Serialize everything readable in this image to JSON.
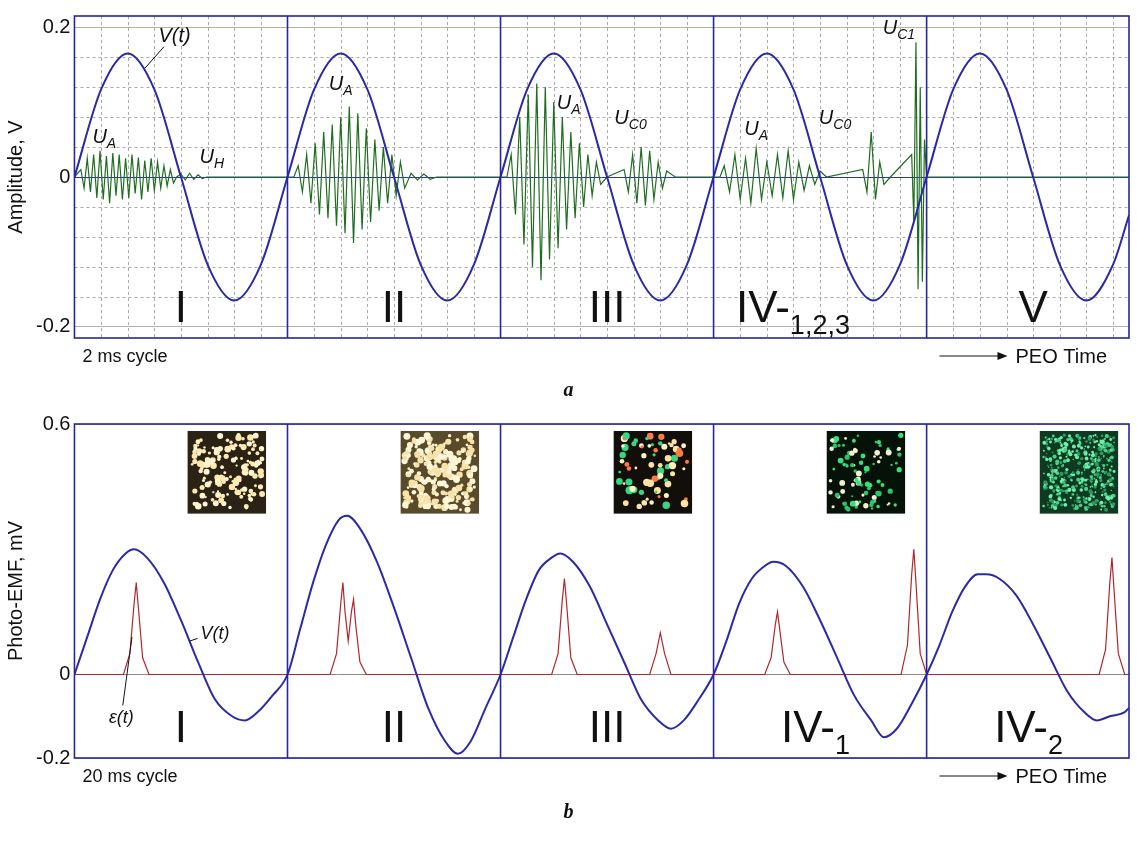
{
  "chart_data": [
    {
      "panel": "a",
      "type": "line",
      "y_label": "Amplitude, V",
      "x_note": "2 ms cycle",
      "time_label": "PEO Time",
      "xlim": [
        0,
        4.95
      ],
      "xticks": [
        0,
        1,
        2,
        3,
        4
      ],
      "ylim": [
        -0.215,
        0.215
      ],
      "yticks": [
        -0.2,
        0,
        0.2
      ],
      "grid": true,
      "tick_labels": "y",
      "sections": [
        {
          "label": "I"
        },
        {
          "label": "II"
        },
        {
          "label": "III"
        },
        {
          "label": "IV-",
          "sub": "1,2,3"
        },
        {
          "label": "V"
        }
      ],
      "series": [
        {
          "color": "#2a2aa6",
          "line_style": "smooth",
          "x": [
            0,
            0.125,
            0.25,
            0.375,
            0.5,
            0.625,
            0.75,
            0.875,
            1,
            1.125,
            1.25,
            1.375,
            1.5,
            1.625,
            1.75,
            1.875,
            2,
            2.125,
            2.25,
            2.375,
            2.5,
            2.625,
            2.75,
            2.875,
            3,
            3.125,
            3.25,
            3.375,
            3.5,
            3.625,
            3.75,
            3.875,
            4,
            4.125,
            4.25,
            4.375,
            4.5,
            4.625,
            4.75,
            4.875,
            4.95
          ],
          "values": [
            0,
            0.117,
            0.165,
            0.117,
            0,
            -0.117,
            -0.165,
            -0.117,
            0,
            0.117,
            0.165,
            0.117,
            0,
            -0.117,
            -0.165,
            -0.117,
            0,
            0.117,
            0.165,
            0.117,
            0,
            -0.117,
            -0.165,
            -0.117,
            0,
            0.117,
            0.165,
            0.117,
            0,
            -0.117,
            -0.165,
            -0.117,
            0,
            0.117,
            0.165,
            0.117,
            0,
            -0.117,
            -0.165,
            -0.117,
            -0.051
          ]
        },
        {
          "color": "#1f6e1f",
          "line_style": "solid",
          "x": [
            0,
            0.03,
            0.045,
            0.06,
            0.075,
            0.09,
            0.105,
            0.12,
            0.135,
            0.15,
            0.165,
            0.18,
            0.195,
            0.21,
            0.225,
            0.24,
            0.255,
            0.27,
            0.285,
            0.3,
            0.315,
            0.33,
            0.345,
            0.36,
            0.375,
            0.39,
            0.405,
            0.42,
            0.435,
            0.45,
            0.465,
            0.48,
            0.5,
            0.52,
            0.54,
            0.56,
            0.58,
            0.6,
            0.62,
            1.03,
            1.05,
            1.07,
            1.09,
            1.11,
            1.13,
            1.15,
            1.17,
            1.19,
            1.21,
            1.23,
            1.25,
            1.27,
            1.29,
            1.31,
            1.33,
            1.35,
            1.37,
            1.39,
            1.41,
            1.43,
            1.45,
            1.47,
            1.49,
            1.51,
            1.53,
            1.55,
            1.58,
            1.61,
            1.64,
            1.67,
            1.7,
            2.03,
            2.05,
            2.07,
            2.09,
            2.11,
            2.13,
            2.15,
            2.17,
            2.19,
            2.21,
            2.23,
            2.25,
            2.27,
            2.29,
            2.31,
            2.33,
            2.35,
            2.37,
            2.39,
            2.41,
            2.43,
            2.45,
            2.47,
            2.5,
            2.58,
            2.6,
            2.62,
            2.64,
            2.66,
            2.68,
            2.7,
            2.72,
            2.74,
            2.76,
            2.78,
            2.82,
            3.03,
            3.05,
            3.075,
            3.1,
            3.125,
            3.15,
            3.175,
            3.2,
            3.225,
            3.25,
            3.275,
            3.3,
            3.325,
            3.35,
            3.375,
            3.4,
            3.425,
            3.45,
            3.475,
            3.5,
            3.53,
            3.7,
            3.72,
            3.74,
            3.76,
            3.78,
            3.8,
            3.83,
            3.93,
            3.94,
            3.95,
            3.96,
            3.97,
            3.98,
            3.99,
            4,
            4.95
          ],
          "values": [
            0,
            0.01,
            -0.015,
            0.025,
            -0.02,
            0.03,
            -0.028,
            0.035,
            -0.03,
            0.028,
            -0.035,
            0.032,
            -0.025,
            0.03,
            -0.03,
            0.025,
            -0.028,
            0.03,
            -0.022,
            0.026,
            -0.03,
            0.022,
            -0.02,
            0.025,
            -0.018,
            0.02,
            -0.015,
            0.015,
            -0.012,
            0.01,
            -0.008,
            0,
            0.004,
            -0.004,
            0.005,
            -0.003,
            0.003,
            -0.002,
            0,
            0,
            0.015,
            -0.02,
            0.03,
            -0.035,
            0.045,
            -0.05,
            0.06,
            -0.055,
            0.07,
            -0.065,
            0.08,
            -0.075,
            0.094,
            -0.088,
            0.085,
            -0.07,
            0.065,
            -0.06,
            0.05,
            -0.045,
            0.04,
            -0.035,
            0.03,
            -0.025,
            0.02,
            -0.015,
            0.005,
            -0.004,
            0.004,
            -0.003,
            0,
            0,
            0.03,
            -0.05,
            0.08,
            -0.09,
            0.11,
            -0.12,
            0.125,
            -0.138,
            0.12,
            -0.11,
            0.1,
            -0.095,
            0.08,
            -0.07,
            0.06,
            -0.055,
            0.045,
            -0.04,
            0.03,
            -0.025,
            0.02,
            -0.01,
            0,
            0.01,
            -0.02,
            0.03,
            -0.035,
            0.04,
            -0.038,
            0.035,
            -0.03,
            0.02,
            -0.015,
            0.008,
            0,
            0,
            0.015,
            -0.02,
            0.03,
            -0.03,
            0.025,
            -0.035,
            0.038,
            -0.03,
            0.02,
            -0.025,
            0.03,
            -0.028,
            0.035,
            -0.03,
            0.02,
            -0.018,
            0.015,
            -0.01,
            0.008,
            0,
            0.01,
            -0.02,
            0.06,
            -0.03,
            0.02,
            -0.01,
            0,
            0.03,
            -0.06,
            0.18,
            -0.15,
            0.12,
            -0.14,
            0.05,
            0,
            0
          ]
        }
      ],
      "annotations": [
        {
          "text": "V(t)",
          "x": 0.47,
          "y": 0.19,
          "arrow_to": [
            0.33,
            0.145
          ]
        },
        {
          "text": "U",
          "sub": "A",
          "x": 0.14,
          "y": 0.055
        },
        {
          "text": "U",
          "sub": "H",
          "x": 0.645,
          "y": 0.028
        },
        {
          "text": "U",
          "sub": "A",
          "x": 1.25,
          "y": 0.125
        },
        {
          "text": "U",
          "sub": "A",
          "x": 2.32,
          "y": 0.1
        },
        {
          "text": "U",
          "sub": "C0",
          "x": 2.61,
          "y": 0.08
        },
        {
          "text": "U",
          "sub": "A",
          "x": 3.2,
          "y": 0.065
        },
        {
          "text": "U",
          "sub": "C0",
          "x": 3.57,
          "y": 0.08
        },
        {
          "text": "U",
          "sub": "C1",
          "x": 3.87,
          "y": 0.2
        }
      ]
    },
    {
      "panel": "b",
      "type": "line",
      "y_label": "Photo-EMF, mV",
      "x_note": "20 ms cycle",
      "time_label": "PEO Time",
      "xlim": [
        0,
        4.95
      ],
      "xticks": [
        0,
        1,
        2,
        3,
        4
      ],
      "ylim": [
        -0.2,
        0.6
      ],
      "yticks": [
        -0.2,
        0,
        0.6
      ],
      "grid": true,
      "tick_labels": "y",
      "sections": [
        {
          "label": "I"
        },
        {
          "label": "II"
        },
        {
          "label": "III"
        },
        {
          "label": "IV-",
          "sub": "1"
        },
        {
          "label": "IV-",
          "sub": "2"
        }
      ],
      "series": [
        {
          "color": "#2a2aa6",
          "line_style": "smooth",
          "x": [
            0,
            0.06,
            0.12,
            0.18,
            0.24,
            0.28,
            0.34,
            0.42,
            0.5,
            0.58,
            0.66,
            0.74,
            0.8,
            0.86,
            0.93,
            1,
            1.06,
            1.12,
            1.18,
            1.24,
            1.28,
            1.34,
            1.42,
            1.5,
            1.58,
            1.66,
            1.74,
            1.8,
            1.86,
            1.93,
            2,
            2.06,
            2.12,
            2.18,
            2.24,
            2.28,
            2.34,
            2.42,
            2.5,
            2.58,
            2.66,
            2.74,
            2.8,
            2.86,
            2.93,
            3,
            3.06,
            3.12,
            3.18,
            3.24,
            3.28,
            3.34,
            3.42,
            3.5,
            3.58,
            3.66,
            3.74,
            3.8,
            3.86,
            3.93,
            4,
            4.06,
            4.12,
            4.18,
            4.24,
            4.28,
            4.34,
            4.42,
            4.5,
            4.58,
            4.66,
            4.74,
            4.8,
            4.86,
            4.93,
            4.95
          ],
          "values": [
            0,
            0.09,
            0.18,
            0.25,
            0.29,
            0.3,
            0.28,
            0.22,
            0.13,
            0.03,
            -0.06,
            -0.1,
            -0.11,
            -0.09,
            -0.05,
            0,
            0.11,
            0.22,
            0.31,
            0.37,
            0.38,
            0.35,
            0.27,
            0.16,
            0.04,
            -0.08,
            -0.16,
            -0.19,
            -0.16,
            -0.08,
            0,
            0.09,
            0.18,
            0.25,
            0.28,
            0.29,
            0.27,
            0.21,
            0.12,
            0.03,
            -0.06,
            -0.11,
            -0.13,
            -0.11,
            -0.06,
            0,
            0.08,
            0.17,
            0.23,
            0.26,
            0.27,
            0.26,
            0.21,
            0.13,
            0.04,
            -0.05,
            -0.11,
            -0.15,
            -0.13,
            -0.07,
            0,
            0.07,
            0.15,
            0.21,
            0.24,
            0.24,
            0.23,
            0.19,
            0.12,
            0.04,
            -0.04,
            -0.09,
            -0.11,
            -0.1,
            -0.09,
            -0.08
          ]
        },
        {
          "color": "#b3262b",
          "line_style": "solid",
          "x": [
            0,
            0.23,
            0.26,
            0.28,
            0.29,
            0.3,
            0.32,
            0.35,
            1.2,
            1.23,
            1.25,
            1.26,
            1.27,
            1.285,
            1.3,
            1.31,
            1.32,
            1.34,
            1.37,
            2.24,
            2.27,
            2.29,
            2.3,
            2.31,
            2.33,
            2.36,
            2.7,
            2.73,
            2.75,
            2.77,
            2.8,
            3.24,
            3.27,
            3.29,
            3.3,
            3.31,
            3.33,
            3.36,
            3.88,
            3.91,
            3.93,
            3.94,
            3.95,
            3.97,
            4,
            4.81,
            4.84,
            4.86,
            4.87,
            4.88,
            4.9,
            4.93,
            4.95
          ],
          "values": [
            0,
            0,
            0.05,
            0.17,
            0.22,
            0.16,
            0.04,
            0,
            0,
            0.05,
            0.17,
            0.22,
            0.15,
            0.08,
            0.15,
            0.18,
            0.12,
            0.03,
            0,
            0,
            0.05,
            0.18,
            0.23,
            0.17,
            0.04,
            0,
            0,
            0.05,
            0.1,
            0.05,
            0,
            0,
            0.04,
            0.12,
            0.15,
            0.11,
            0.03,
            0,
            0,
            0.07,
            0.24,
            0.3,
            0.22,
            0.05,
            0,
            0,
            0.06,
            0.22,
            0.28,
            0.2,
            0.05,
            0,
            0
          ]
        }
      ],
      "annotations": [
        {
          "text": "ε(t)",
          "x": 0.22,
          "y": -0.1,
          "arrow_to": [
            0.27,
            0.09
          ]
        },
        {
          "text": "V(t)",
          "x": 0.66,
          "y": 0.1,
          "arrow_to": [
            0.54,
            0.08
          ]
        }
      ]
    }
  ]
}
